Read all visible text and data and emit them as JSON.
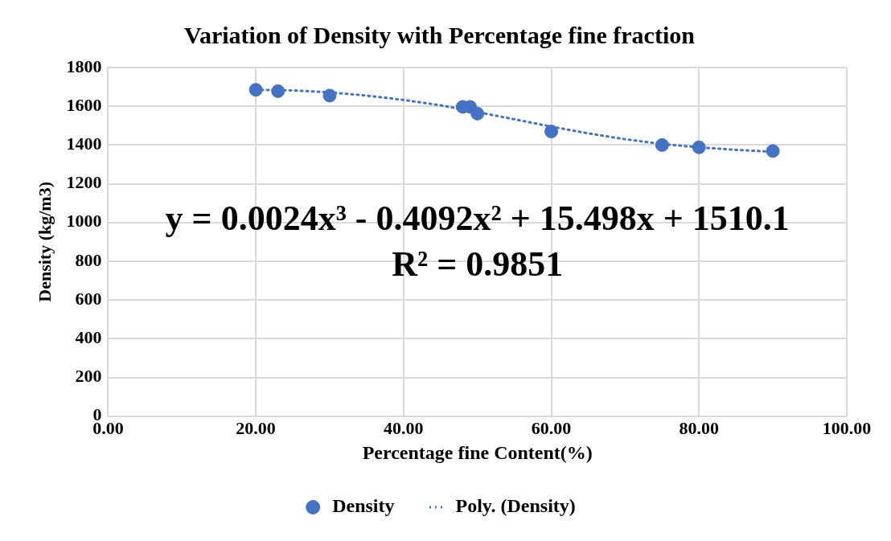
{
  "chart_data": {
    "type": "scatter",
    "title": "Variation of Density with Percentage fine fraction",
    "xlabel": "Percentage fine Content(%)",
    "ylabel": "Density (kg/m3)",
    "xlim": [
      0,
      100
    ],
    "xticks": [
      {
        "value": 0,
        "label": "0.00"
      },
      {
        "value": 20,
        "label": "20.00"
      },
      {
        "value": 40,
        "label": "40.00"
      },
      {
        "value": 60,
        "label": "60.00"
      },
      {
        "value": 80,
        "label": "80.00"
      },
      {
        "value": 100,
        "label": "100.00"
      }
    ],
    "ylim": [
      0,
      1800
    ],
    "yticks": [
      0,
      200,
      400,
      600,
      800,
      1000,
      1200,
      1400,
      1600,
      1800
    ],
    "series": [
      {
        "name": "Density",
        "color": "#4472c4",
        "marker": "circle",
        "x": [
          20,
          23,
          30,
          48,
          49,
          50,
          60,
          75,
          80,
          90
        ],
        "values": [
          1685,
          1678,
          1655,
          1597,
          1597,
          1562,
          1470,
          1400,
          1388,
          1369
        ]
      },
      {
        "name": "Poly. (Density)",
        "type": "line",
        "color": "#4472c4",
        "marker": "none",
        "line_style": "dotted",
        "x": [
          20,
          25,
          30,
          35,
          40,
          45,
          50,
          55,
          60,
          65,
          70,
          75,
          80,
          85,
          90
        ],
        "values": [
          1685,
          1682,
          1672,
          1655,
          1633,
          1605,
          1570,
          1533,
          1495,
          1460,
          1430,
          1405,
          1388,
          1375,
          1365
        ]
      }
    ],
    "annotations": [
      "y = 0.0024x³ - 0.4092x² + 15.498x + 1510.1",
      "R² = 0.9851"
    ],
    "grid": true,
    "legend": "bottom"
  }
}
